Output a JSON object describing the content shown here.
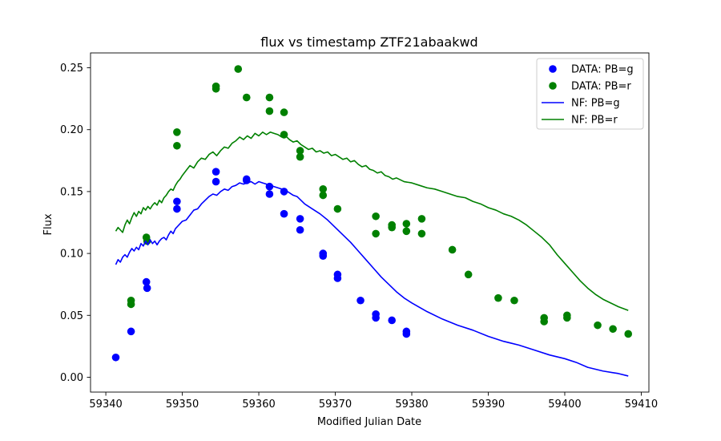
{
  "chart_data": {
    "type": "scatter",
    "title": "flux vs timestamp ZTF21abaakwd",
    "xlabel": "Modified Julian Date",
    "ylabel": "Flux",
    "xlim": [
      59338.0,
      59411.0
    ],
    "ylim": [
      -0.012,
      0.262
    ],
    "xticks": [
      59340,
      59350,
      59360,
      59370,
      59380,
      59390,
      59400,
      59410
    ],
    "yticks": [
      0.0,
      0.05,
      0.1,
      0.15,
      0.2,
      0.25
    ],
    "xtick_labels": [
      "59340",
      "59350",
      "59360",
      "59370",
      "59380",
      "59390",
      "59400",
      "59410"
    ],
    "ytick_labels": [
      "0.00",
      "0.05",
      "0.10",
      "0.15",
      "0.20",
      "0.25"
    ],
    "grid": false,
    "legend_position": "top-right",
    "series": [
      {
        "name": "DATA: PB=g",
        "kind": "scatter",
        "color": "#0000ff",
        "points": [
          [
            59341.3,
            0.016
          ],
          [
            59343.3,
            0.037
          ],
          [
            59345.3,
            0.077
          ],
          [
            59345.4,
            0.072
          ],
          [
            59349.3,
            0.142
          ],
          [
            59349.3,
            0.136
          ],
          [
            59354.4,
            0.166
          ],
          [
            59354.4,
            0.158
          ],
          [
            59358.4,
            0.159
          ],
          [
            59358.4,
            0.16
          ],
          [
            59361.4,
            0.154
          ],
          [
            59361.4,
            0.148
          ],
          [
            59363.3,
            0.15
          ],
          [
            59363.3,
            0.132
          ],
          [
            59365.4,
            0.128
          ],
          [
            59365.4,
            0.119
          ],
          [
            59368.4,
            0.1
          ],
          [
            59368.4,
            0.098
          ],
          [
            59370.3,
            0.083
          ],
          [
            59370.3,
            0.08
          ],
          [
            59373.3,
            0.062
          ],
          [
            59375.3,
            0.051
          ],
          [
            59375.3,
            0.048
          ],
          [
            59377.4,
            0.046
          ],
          [
            59379.3,
            0.037
          ],
          [
            59379.3,
            0.035
          ]
        ]
      },
      {
        "name": "DATA: PB=r",
        "kind": "scatter",
        "color": "#008000",
        "points": [
          [
            59343.3,
            0.062
          ],
          [
            59343.3,
            0.059
          ],
          [
            59345.3,
            0.113
          ],
          [
            59345.4,
            0.11
          ],
          [
            59349.3,
            0.198
          ],
          [
            59349.3,
            0.187
          ],
          [
            59354.4,
            0.235
          ],
          [
            59354.4,
            0.233
          ],
          [
            59357.3,
            0.249
          ],
          [
            59358.4,
            0.226
          ],
          [
            59361.4,
            0.226
          ],
          [
            59361.4,
            0.215
          ],
          [
            59363.3,
            0.214
          ],
          [
            59363.3,
            0.196
          ],
          [
            59365.4,
            0.183
          ],
          [
            59365.4,
            0.178
          ],
          [
            59368.4,
            0.152
          ],
          [
            59368.4,
            0.147
          ],
          [
            59370.3,
            0.136
          ],
          [
            59375.3,
            0.13
          ],
          [
            59375.3,
            0.116
          ],
          [
            59377.4,
            0.123
          ],
          [
            59377.4,
            0.121
          ],
          [
            59379.3,
            0.124
          ],
          [
            59379.3,
            0.118
          ],
          [
            59381.3,
            0.128
          ],
          [
            59381.3,
            0.116
          ],
          [
            59385.3,
            0.103
          ],
          [
            59387.4,
            0.083
          ],
          [
            59391.3,
            0.064
          ],
          [
            59393.4,
            0.062
          ],
          [
            59397.3,
            0.048
          ],
          [
            59397.3,
            0.045
          ],
          [
            59400.3,
            0.05
          ],
          [
            59400.3,
            0.048
          ],
          [
            59404.3,
            0.042
          ],
          [
            59406.3,
            0.039
          ],
          [
            59408.3,
            0.035
          ]
        ]
      },
      {
        "name": "NF: PB=g",
        "kind": "line",
        "color": "#0000ff",
        "points": [
          [
            59341.3,
            0.091
          ],
          [
            59341.6,
            0.095
          ],
          [
            59341.9,
            0.093
          ],
          [
            59342.2,
            0.097
          ],
          [
            59342.5,
            0.099
          ],
          [
            59342.8,
            0.097
          ],
          [
            59343.1,
            0.101
          ],
          [
            59343.4,
            0.104
          ],
          [
            59343.7,
            0.102
          ],
          [
            59344.0,
            0.105
          ],
          [
            59344.3,
            0.103
          ],
          [
            59344.6,
            0.108
          ],
          [
            59344.9,
            0.106
          ],
          [
            59345.2,
            0.11
          ],
          [
            59345.5,
            0.107
          ],
          [
            59345.8,
            0.111
          ],
          [
            59346.1,
            0.108
          ],
          [
            59346.4,
            0.11
          ],
          [
            59346.7,
            0.107
          ],
          [
            59347.0,
            0.11
          ],
          [
            59347.3,
            0.112
          ],
          [
            59347.6,
            0.113
          ],
          [
            59347.9,
            0.111
          ],
          [
            59348.2,
            0.115
          ],
          [
            59348.5,
            0.118
          ],
          [
            59348.8,
            0.116
          ],
          [
            59349.1,
            0.12
          ],
          [
            59349.4,
            0.122
          ],
          [
            59349.7,
            0.124
          ],
          [
            59350.0,
            0.126
          ],
          [
            59350.5,
            0.127
          ],
          [
            59351.0,
            0.131
          ],
          [
            59351.5,
            0.135
          ],
          [
            59352.0,
            0.136
          ],
          [
            59352.5,
            0.14
          ],
          [
            59353.0,
            0.143
          ],
          [
            59353.5,
            0.146
          ],
          [
            59354.0,
            0.148
          ],
          [
            59354.5,
            0.147
          ],
          [
            59355.0,
            0.15
          ],
          [
            59355.5,
            0.152
          ],
          [
            59356.0,
            0.151
          ],
          [
            59356.5,
            0.154
          ],
          [
            59357.0,
            0.155
          ],
          [
            59357.5,
            0.157
          ],
          [
            59358.0,
            0.156
          ],
          [
            59358.5,
            0.157
          ],
          [
            59359.0,
            0.158
          ],
          [
            59359.5,
            0.156
          ],
          [
            59360.0,
            0.158
          ],
          [
            59360.5,
            0.157
          ],
          [
            59361.0,
            0.156
          ],
          [
            59361.5,
            0.155
          ],
          [
            59362.0,
            0.154
          ],
          [
            59362.5,
            0.153
          ],
          [
            59363.0,
            0.152
          ],
          [
            59363.5,
            0.151
          ],
          [
            59364.0,
            0.149
          ],
          [
            59364.5,
            0.147
          ],
          [
            59365.0,
            0.146
          ],
          [
            59365.5,
            0.143
          ],
          [
            59366.0,
            0.14
          ],
          [
            59366.5,
            0.138
          ],
          [
            59367.0,
            0.136
          ],
          [
            59368.0,
            0.132
          ],
          [
            59369.0,
            0.127
          ],
          [
            59370.0,
            0.121
          ],
          [
            59371.0,
            0.115
          ],
          [
            59372.0,
            0.109
          ],
          [
            59373.0,
            0.102
          ],
          [
            59374.0,
            0.095
          ],
          [
            59375.0,
            0.088
          ],
          [
            59376.0,
            0.081
          ],
          [
            59377.0,
            0.075
          ],
          [
            59378.0,
            0.069
          ],
          [
            59379.0,
            0.064
          ],
          [
            59380.0,
            0.06
          ],
          [
            59382.0,
            0.053
          ],
          [
            59384.0,
            0.047
          ],
          [
            59386.0,
            0.042
          ],
          [
            59388.0,
            0.038
          ],
          [
            59390.0,
            0.033
          ],
          [
            59392.0,
            0.029
          ],
          [
            59394.0,
            0.026
          ],
          [
            59396.0,
            0.022
          ],
          [
            59398.0,
            0.018
          ],
          [
            59400.0,
            0.015
          ],
          [
            59401.5,
            0.012
          ],
          [
            59403.0,
            0.008
          ],
          [
            59405.0,
            0.005
          ],
          [
            59407.0,
            0.003
          ],
          [
            59408.3,
            0.001
          ]
        ]
      },
      {
        "name": "NF: PB=r",
        "kind": "line",
        "color": "#008000",
        "points": [
          [
            59341.3,
            0.118
          ],
          [
            59341.6,
            0.121
          ],
          [
            59341.9,
            0.119
          ],
          [
            59342.2,
            0.117
          ],
          [
            59342.5,
            0.123
          ],
          [
            59342.8,
            0.127
          ],
          [
            59343.1,
            0.124
          ],
          [
            59343.4,
            0.129
          ],
          [
            59343.7,
            0.133
          ],
          [
            59344.0,
            0.13
          ],
          [
            59344.3,
            0.134
          ],
          [
            59344.6,
            0.132
          ],
          [
            59344.9,
            0.137
          ],
          [
            59345.2,
            0.135
          ],
          [
            59345.5,
            0.138
          ],
          [
            59345.8,
            0.136
          ],
          [
            59346.1,
            0.139
          ],
          [
            59346.4,
            0.141
          ],
          [
            59346.7,
            0.139
          ],
          [
            59347.0,
            0.143
          ],
          [
            59347.3,
            0.141
          ],
          [
            59347.6,
            0.145
          ],
          [
            59347.9,
            0.147
          ],
          [
            59348.2,
            0.15
          ],
          [
            59348.5,
            0.152
          ],
          [
            59348.8,
            0.151
          ],
          [
            59349.1,
            0.155
          ],
          [
            59349.4,
            0.158
          ],
          [
            59349.7,
            0.16
          ],
          [
            59350.0,
            0.163
          ],
          [
            59350.5,
            0.167
          ],
          [
            59351.0,
            0.171
          ],
          [
            59351.5,
            0.169
          ],
          [
            59352.0,
            0.174
          ],
          [
            59352.5,
            0.177
          ],
          [
            59353.0,
            0.176
          ],
          [
            59353.5,
            0.18
          ],
          [
            59354.0,
            0.182
          ],
          [
            59354.5,
            0.179
          ],
          [
            59355.0,
            0.183
          ],
          [
            59355.5,
            0.186
          ],
          [
            59356.0,
            0.185
          ],
          [
            59356.5,
            0.189
          ],
          [
            59357.0,
            0.191
          ],
          [
            59357.5,
            0.194
          ],
          [
            59358.0,
            0.192
          ],
          [
            59358.5,
            0.195
          ],
          [
            59359.0,
            0.193
          ],
          [
            59359.5,
            0.197
          ],
          [
            59360.0,
            0.195
          ],
          [
            59360.5,
            0.198
          ],
          [
            59361.0,
            0.196
          ],
          [
            59361.5,
            0.198
          ],
          [
            59362.0,
            0.197
          ],
          [
            59362.5,
            0.196
          ],
          [
            59363.0,
            0.194
          ],
          [
            59363.5,
            0.195
          ],
          [
            59364.0,
            0.192
          ],
          [
            59364.5,
            0.19
          ],
          [
            59365.0,
            0.191
          ],
          [
            59365.5,
            0.188
          ],
          [
            59366.0,
            0.186
          ],
          [
            59366.5,
            0.184
          ],
          [
            59367.0,
            0.185
          ],
          [
            59367.5,
            0.182
          ],
          [
            59368.0,
            0.183
          ],
          [
            59368.5,
            0.181
          ],
          [
            59369.0,
            0.182
          ],
          [
            59369.5,
            0.179
          ],
          [
            59370.0,
            0.18
          ],
          [
            59370.5,
            0.178
          ],
          [
            59371.0,
            0.176
          ],
          [
            59371.5,
            0.177
          ],
          [
            59372.0,
            0.174
          ],
          [
            59372.5,
            0.175
          ],
          [
            59373.0,
            0.172
          ],
          [
            59373.5,
            0.17
          ],
          [
            59374.0,
            0.171
          ],
          [
            59374.5,
            0.168
          ],
          [
            59375.0,
            0.167
          ],
          [
            59375.5,
            0.165
          ],
          [
            59376.0,
            0.166
          ],
          [
            59376.5,
            0.163
          ],
          [
            59377.0,
            0.162
          ],
          [
            59377.5,
            0.16
          ],
          [
            59378.0,
            0.161
          ],
          [
            59379.0,
            0.158
          ],
          [
            59380.0,
            0.157
          ],
          [
            59381.0,
            0.155
          ],
          [
            59382.0,
            0.153
          ],
          [
            59383.0,
            0.152
          ],
          [
            59384.0,
            0.15
          ],
          [
            59385.0,
            0.148
          ],
          [
            59386.0,
            0.146
          ],
          [
            59387.0,
            0.145
          ],
          [
            59388.0,
            0.142
          ],
          [
            59389.0,
            0.14
          ],
          [
            59390.0,
            0.137
          ],
          [
            59391.0,
            0.135
          ],
          [
            59392.0,
            0.132
          ],
          [
            59393.0,
            0.13
          ],
          [
            59394.0,
            0.127
          ],
          [
            59395.0,
            0.123
          ],
          [
            59396.0,
            0.118
          ],
          [
            59397.0,
            0.113
          ],
          [
            59398.0,
            0.107
          ],
          [
            59399.0,
            0.099
          ],
          [
            59400.0,
            0.092
          ],
          [
            59401.0,
            0.085
          ],
          [
            59402.0,
            0.078
          ],
          [
            59403.0,
            0.072
          ],
          [
            59404.0,
            0.067
          ],
          [
            59405.0,
            0.063
          ],
          [
            59406.0,
            0.06
          ],
          [
            59407.0,
            0.057
          ],
          [
            59408.3,
            0.054
          ]
        ]
      }
    ]
  }
}
